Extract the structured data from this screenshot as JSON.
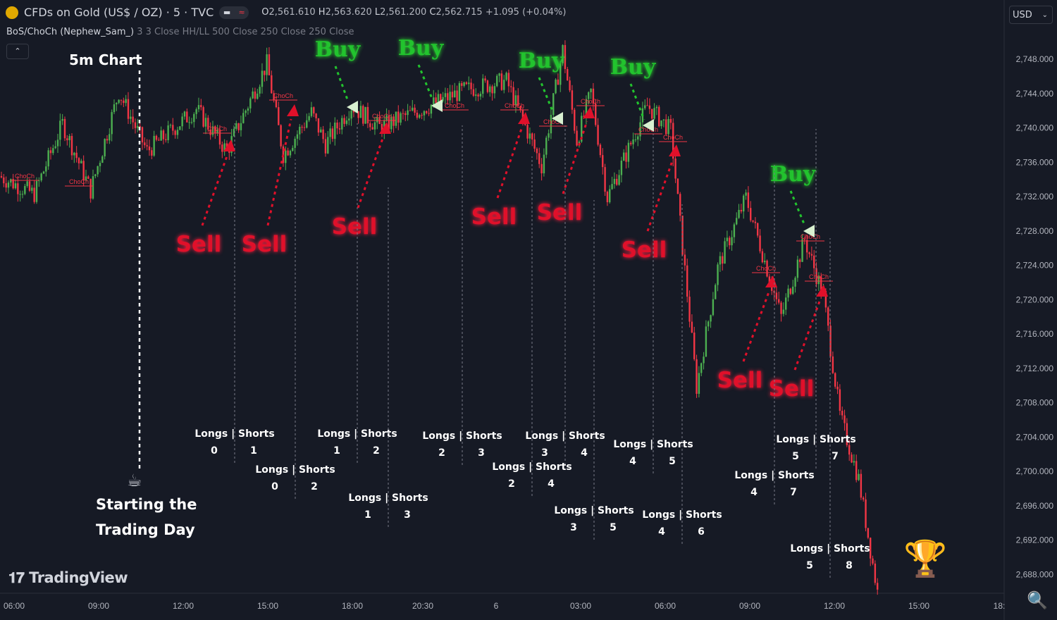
{
  "header": {
    "symbol": "CFDs on Gold (US$ / OZ) · 5 · TVC",
    "O": "2,561.610",
    "H": "2,563.620",
    "L": "2,561.200",
    "C": "2,562.715",
    "change": "+1.095 (+0.04%)",
    "indicator": "BoS/ChoCh (Nephew_Sam_)",
    "indicator_params": "3 3 Close HH/LL 500 Close 250 Close 250 Close",
    "currency": "USD"
  },
  "annotations": {
    "chart_label": "5m Chart",
    "start_line1": "Starting the",
    "start_line2": "Trading Day",
    "brand": "TradingView",
    "buy": "Buy",
    "sell": "Sell",
    "choch": "ChoCh",
    "longs_shorts": "Longs | Shorts"
  },
  "colors": {
    "bg": "#161a25",
    "up": "#4caf50",
    "down": "#f23645",
    "buy": "#22c32e",
    "sell": "#e0102a"
  },
  "chart_data": {
    "type": "candlestick",
    "timeframe": "5m",
    "x_ticks": [
      "06:00",
      "09:00",
      "12:00",
      "15:00",
      "18:00",
      "20:30",
      "6",
      "03:00",
      "06:00",
      "09:00",
      "12:00",
      "15:00",
      "18:"
    ],
    "y_ticks": [
      "2,748.000",
      "2,744.000",
      "2,740.000",
      "2,736.000",
      "2,732.000",
      "2,728.000",
      "2,724.000",
      "2,720.000",
      "2,716.000",
      "2,712.000",
      "2,708.000",
      "2,704.000",
      "2,700.000",
      "2,696.000",
      "2,692.000",
      "2,688.000"
    ],
    "ylim": [
      2685,
      2752
    ],
    "price_path": [
      [
        0,
        2734.3
      ],
      [
        15,
        2732.2
      ],
      [
        27,
        2740.4
      ],
      [
        39,
        2732.6
      ],
      [
        51,
        2744.1
      ],
      [
        63,
        2737.2
      ],
      [
        84,
        2742.1
      ],
      [
        97,
        2737.2
      ],
      [
        114,
        2747.4
      ],
      [
        121,
        2736.8
      ],
      [
        133,
        2741.7
      ],
      [
        139,
        2738
      ],
      [
        150,
        2742.5
      ],
      [
        162,
        2740
      ],
      [
        180,
        2742.1
      ],
      [
        198,
        2744.3
      ],
      [
        216,
        2745.4
      ],
      [
        231,
        2735.5
      ],
      [
        240,
        2749
      ],
      [
        246,
        2738.4
      ],
      [
        252,
        2744.1
      ],
      [
        259,
        2731.8
      ],
      [
        276,
        2742.5
      ],
      [
        286,
        2739.6
      ],
      [
        297,
        2709.7
      ],
      [
        306,
        2723.6
      ],
      [
        318,
        2731.8
      ],
      [
        333,
        2717.9
      ],
      [
        343,
        2726.9
      ],
      [
        351,
        2720.3
      ],
      [
        358,
        2706.4
      ],
      [
        366,
        2699
      ],
      [
        374,
        2685.8
      ]
    ],
    "counters": [
      {
        "longs": 0,
        "shorts": 1
      },
      {
        "longs": 0,
        "shorts": 2
      },
      {
        "longs": 1,
        "shorts": 2
      },
      {
        "longs": 1,
        "shorts": 3
      },
      {
        "longs": 2,
        "shorts": 3
      },
      {
        "longs": 3,
        "shorts": 4
      },
      {
        "longs": 2,
        "shorts": 4
      },
      {
        "longs": 4,
        "shorts": 5
      },
      {
        "longs": 3,
        "shorts": 5
      },
      {
        "longs": 4,
        "shorts": 6
      },
      {
        "longs": 5,
        "shorts": 7
      },
      {
        "longs": 4,
        "shorts": 7
      },
      {
        "longs": 5,
        "shorts": 8
      }
    ]
  }
}
